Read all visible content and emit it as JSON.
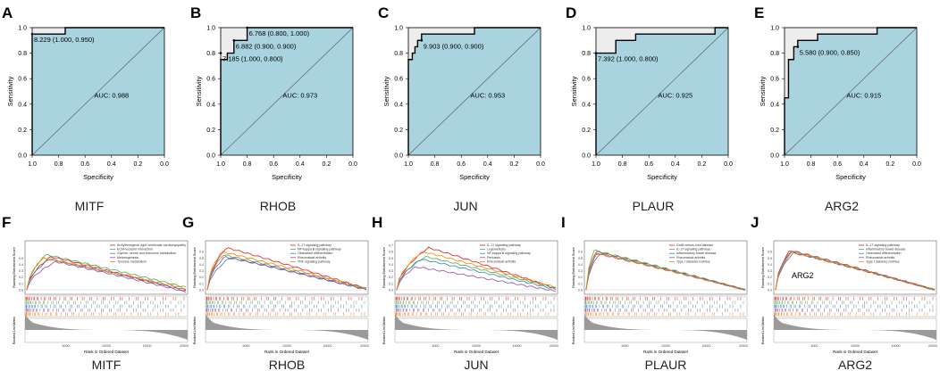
{
  "figure": {
    "colors": {
      "roc_fill": "#a9d3de",
      "roc_gray": "#ededed",
      "line": "#000000",
      "axis": "#333333",
      "gsea_palette": [
        "#e41a1c",
        "#4daf4a",
        "#377eb8",
        "#984ea3",
        "#ff7f00"
      ]
    },
    "gsea_axis_labels": {
      "y_top": "Running Enrichment Score",
      "y_bottom": "Ranked List Metric",
      "x": "Rank in Ordered Dataset",
      "x_ticks": [
        "5000",
        "10000",
        "15000",
        "20000"
      ]
    }
  },
  "chart_data": [
    {
      "type": "roc",
      "panel": "A",
      "gene": "MITF",
      "title": "",
      "xlabel": "Specificity",
      "ylabel": "Sensitivity",
      "xlim": [
        1.0,
        0.0
      ],
      "ylim": [
        0.0,
        1.0
      ],
      "x_ticks": [
        "1.0",
        "0.8",
        "0.6",
        "0.4",
        "0.2",
        "0.0"
      ],
      "y_ticks": [
        "0.0",
        "0.2",
        "0.4",
        "0.6",
        "0.8",
        "1.0"
      ],
      "auc_label": "AUC: 0.988",
      "curve": [
        [
          1.0,
          0.0
        ],
        [
          1.0,
          0.95
        ],
        [
          0.75,
          0.95
        ],
        [
          0.75,
          1.0
        ],
        [
          0.0,
          1.0
        ]
      ],
      "thresholds": [
        {
          "text": "8.229 (1.000, 0.950)",
          "spec": 1.0,
          "sens": 0.95
        }
      ]
    },
    {
      "type": "roc",
      "panel": "B",
      "gene": "RHOB",
      "title": "",
      "xlabel": "Specificity",
      "ylabel": "Sensitivity",
      "xlim": [
        1.0,
        0.0
      ],
      "ylim": [
        0.0,
        1.0
      ],
      "x_ticks": [
        "1.0",
        "0.8",
        "0.6",
        "0.4",
        "0.2",
        "0.0"
      ],
      "y_ticks": [
        "0.0",
        "0.2",
        "0.4",
        "0.6",
        "0.8",
        "1.0"
      ],
      "auc_label": "AUC: 0.973",
      "curve": [
        [
          1.0,
          0.0
        ],
        [
          1.0,
          0.75
        ],
        [
          0.95,
          0.75
        ],
        [
          0.95,
          0.8
        ],
        [
          0.9,
          0.8
        ],
        [
          0.9,
          0.85
        ],
        [
          0.9,
          0.9
        ],
        [
          0.8,
          0.9
        ],
        [
          0.8,
          1.0
        ],
        [
          0.0,
          1.0
        ]
      ],
      "thresholds": [
        {
          "text": "6.768 (0.800, 1.000)",
          "spec": 0.8,
          "sens": 1.0
        },
        {
          "text": "6.882 (0.900, 0.900)",
          "spec": 0.9,
          "sens": 0.9
        },
        {
          "text": "7.185 (1.000, 0.800)",
          "spec": 1.0,
          "sens": 0.8
        }
      ]
    },
    {
      "type": "roc",
      "panel": "C",
      "gene": "JUN",
      "title": "",
      "xlabel": "Specificity",
      "ylabel": "Sensitivity",
      "xlim": [
        1.0,
        0.0
      ],
      "ylim": [
        0.0,
        1.0
      ],
      "x_ticks": [
        "1.0",
        "0.8",
        "0.6",
        "0.4",
        "0.2",
        "0.0"
      ],
      "y_ticks": [
        "0.0",
        "0.2",
        "0.4",
        "0.6",
        "0.8",
        "1.0"
      ],
      "auc_label": "AUC: 0.953",
      "curve": [
        [
          1.0,
          0.0
        ],
        [
          1.0,
          0.75
        ],
        [
          0.97,
          0.75
        ],
        [
          0.97,
          0.8
        ],
        [
          0.95,
          0.8
        ],
        [
          0.95,
          0.85
        ],
        [
          0.93,
          0.85
        ],
        [
          0.93,
          0.9
        ],
        [
          0.9,
          0.9
        ],
        [
          0.9,
          0.95
        ],
        [
          0.5,
          0.95
        ],
        [
          0.5,
          1.0
        ],
        [
          0.0,
          1.0
        ]
      ],
      "thresholds": [
        {
          "text": "9.903 (0.900, 0.900)",
          "spec": 0.9,
          "sens": 0.9
        }
      ]
    },
    {
      "type": "roc",
      "panel": "D",
      "gene": "PLAUR",
      "title": "",
      "xlabel": "Specificity",
      "ylabel": "Sensitivity",
      "xlim": [
        1.0,
        0.0
      ],
      "ylim": [
        0.0,
        1.0
      ],
      "x_ticks": [
        "1.0",
        "0.8",
        "0.6",
        "0.4",
        "0.2",
        "0.0"
      ],
      "y_ticks": [
        "0.0",
        "0.2",
        "0.4",
        "0.6",
        "0.8",
        "1.0"
      ],
      "auc_label": "AUC: 0.925",
      "curve": [
        [
          1.0,
          0.0
        ],
        [
          1.0,
          0.8
        ],
        [
          0.85,
          0.8
        ],
        [
          0.85,
          0.9
        ],
        [
          0.7,
          0.9
        ],
        [
          0.7,
          0.95
        ],
        [
          0.1,
          0.95
        ],
        [
          0.1,
          1.0
        ],
        [
          0.0,
          1.0
        ]
      ],
      "thresholds": [
        {
          "text": "7.392 (1.000, 0.800)",
          "spec": 1.0,
          "sens": 0.8
        }
      ]
    },
    {
      "type": "roc",
      "panel": "E",
      "gene": "ARG2",
      "title": "",
      "xlabel": "Specificity",
      "ylabel": "Sensitivity",
      "xlim": [
        1.0,
        0.0
      ],
      "ylim": [
        0.0,
        1.0
      ],
      "x_ticks": [
        "1.0",
        "0.8",
        "0.6",
        "0.4",
        "0.2",
        "0.0"
      ],
      "y_ticks": [
        "0.0",
        "0.2",
        "0.4",
        "0.6",
        "0.8",
        "1.0"
      ],
      "auc_label": "AUC: 0.915",
      "curve": [
        [
          1.0,
          0.0
        ],
        [
          1.0,
          0.45
        ],
        [
          0.97,
          0.45
        ],
        [
          0.97,
          0.75
        ],
        [
          0.93,
          0.75
        ],
        [
          0.93,
          0.85
        ],
        [
          0.9,
          0.85
        ],
        [
          0.9,
          0.9
        ],
        [
          0.75,
          0.9
        ],
        [
          0.75,
          0.95
        ],
        [
          0.3,
          0.95
        ],
        [
          0.3,
          1.0
        ],
        [
          0.0,
          1.0
        ]
      ],
      "thresholds": [
        {
          "text": "5.580 (0.900, 0.850)",
          "spec": 0.9,
          "sens": 0.85
        }
      ]
    },
    {
      "type": "gsea",
      "panel": "F",
      "gene": "MITF",
      "overlay": "",
      "legend": [
        "Arrhythmogenic right ventricular cardiomyopathy",
        "ECM-receptor interaction",
        "Glycine, serine and threonine metabolism",
        "Melanogenesis",
        "Tyrosine metabolism"
      ],
      "y_ticks": [
        "0.5",
        "0.4",
        "0.3",
        "0.2",
        "0.1",
        "0.0"
      ],
      "series": [
        {
          "name": "Arrhythmogenic right ventricular cardiomyopathy",
          "color": "#e41a1c",
          "peak": 0.52,
          "peak_at": 0.15,
          "end": -0.02
        },
        {
          "name": "ECM-receptor interaction",
          "color": "#4daf4a",
          "peak": 0.55,
          "peak_at": 0.12,
          "end": 0.04
        },
        {
          "name": "Glycine, serine and threonine metabolism",
          "color": "#377eb8",
          "peak": 0.48,
          "peak_at": 0.14,
          "end": 0.0
        },
        {
          "name": "Melanogenesis",
          "color": "#984ea3",
          "peak": 0.44,
          "peak_at": 0.18,
          "end": -0.03
        },
        {
          "name": "Tyrosine metabolism",
          "color": "#ff7f00",
          "peak": 0.5,
          "peak_at": 0.1,
          "end": 0.02
        }
      ]
    },
    {
      "type": "gsea",
      "panel": "G",
      "gene": "RHOB",
      "overlay": "",
      "legend": [
        "IL-17 signaling pathway",
        "NF-kappa B signaling pathway",
        "Osteoclast differentiation",
        "Rheumatoid arthritis",
        "TNF signaling pathway"
      ],
      "y_ticks": [
        "0.6",
        "0.5",
        "0.4",
        "0.3",
        "0.2",
        "0.1",
        "0.0"
      ],
      "series": [
        {
          "name": "IL-17 signaling pathway",
          "color": "#e41a1c",
          "peak": 0.66,
          "peak_at": 0.12,
          "end": 0.02
        },
        {
          "name": "NF-kappa B signaling pathway",
          "color": "#4daf4a",
          "peak": 0.55,
          "peak_at": 0.1,
          "end": 0.02
        },
        {
          "name": "Osteoclast differentiation",
          "color": "#377eb8",
          "peak": 0.5,
          "peak_at": 0.14,
          "end": 0.0
        },
        {
          "name": "Rheumatoid arthritis",
          "color": "#984ea3",
          "peak": 0.52,
          "peak_at": 0.11,
          "end": 0.01
        },
        {
          "name": "TNF signaling pathway",
          "color": "#ff7f00",
          "peak": 0.6,
          "peak_at": 0.09,
          "end": 0.02
        }
      ]
    },
    {
      "type": "gsea",
      "panel": "H",
      "gene": "JUN",
      "overlay": "",
      "legend": [
        "IL-17 signaling pathway",
        "Legionellosis",
        "NF-kappa B signaling pathway",
        "Pertussis",
        "Rheumatoid arthritis"
      ],
      "y_ticks": [
        "0.7",
        "0.6",
        "0.5",
        "0.4",
        "0.3",
        "0.2",
        "0.1",
        "0.0",
        "-0.05"
      ],
      "series": [
        {
          "name": "IL-17 signaling pathway",
          "color": "#e41a1c",
          "peak": 0.66,
          "peak_at": 0.2,
          "end": 0.02
        },
        {
          "name": "Legionellosis",
          "color": "#4daf4a",
          "peak": 0.52,
          "peak_at": 0.18,
          "end": 0.03
        },
        {
          "name": "NF-kappa B signaling pathway",
          "color": "#377eb8",
          "peak": 0.48,
          "peak_at": 0.15,
          "end": 0.01
        },
        {
          "name": "Pertussis",
          "color": "#984ea3",
          "peak": 0.36,
          "peak_at": 0.12,
          "end": -0.02
        },
        {
          "name": "Rheumatoid arthritis",
          "color": "#ff7f00",
          "peak": 0.6,
          "peak_at": 0.16,
          "end": 0.04
        }
      ]
    },
    {
      "type": "gsea",
      "panel": "I",
      "gene": "PLAUR",
      "overlay": "",
      "legend": [
        "Graft-versus-host disease",
        "IL-17 signaling pathway",
        "Inflammatory bowel disease",
        "Rheumatoid arthritis",
        "Type I diabetes mellitus"
      ],
      "y_ticks": [
        "0.6",
        "0.5",
        "0.4",
        "0.3",
        "0.2",
        "0.1",
        "0.0"
      ],
      "series": [
        {
          "name": "Graft-versus-host disease",
          "color": "#e41a1c",
          "peak": 0.6,
          "peak_at": 0.06,
          "end": 0.0
        },
        {
          "name": "IL-17 signaling pathway",
          "color": "#4daf4a",
          "peak": 0.62,
          "peak_at": 0.05,
          "end": 0.0
        },
        {
          "name": "Inflammatory bowel disease",
          "color": "#377eb8",
          "peak": 0.58,
          "peak_at": 0.07,
          "end": 0.0
        },
        {
          "name": "Rheumatoid arthritis",
          "color": "#984ea3",
          "peak": 0.56,
          "peak_at": 0.08,
          "end": 0.0
        },
        {
          "name": "Type I diabetes mellitus",
          "color": "#ff7f00",
          "peak": 0.57,
          "peak_at": 0.06,
          "end": 0.0
        }
      ]
    },
    {
      "type": "gsea",
      "panel": "J",
      "gene": "ARG2",
      "overlay": "ARG2",
      "legend": [
        "IL-17 signaling pathway",
        "Inflammatory bowel disease",
        "Osteoclast differentiation",
        "Rheumatoid arthritis",
        "Type I diabetes mellitus"
      ],
      "y_ticks": [
        "0.6",
        "0.5",
        "0.4",
        "0.3",
        "0.2",
        "0.1",
        "0.0"
      ],
      "series": [
        {
          "name": "IL-17 signaling pathway",
          "color": "#e41a1c",
          "peak": 0.62,
          "peak_at": 0.09,
          "end": 0.0
        },
        {
          "name": "Inflammatory bowel disease",
          "color": "#4daf4a",
          "peak": 0.6,
          "peak_at": 0.1,
          "end": 0.0
        },
        {
          "name": "Osteoclast differentiation",
          "color": "#377eb8",
          "peak": 0.58,
          "peak_at": 0.11,
          "end": 0.0
        },
        {
          "name": "Rheumatoid arthritis",
          "color": "#984ea3",
          "peak": 0.6,
          "peak_at": 0.09,
          "end": 0.0
        },
        {
          "name": "Type I diabetes mellitus",
          "color": "#ff7f00",
          "peak": 0.59,
          "peak_at": 0.1,
          "end": 0.0
        }
      ]
    }
  ]
}
